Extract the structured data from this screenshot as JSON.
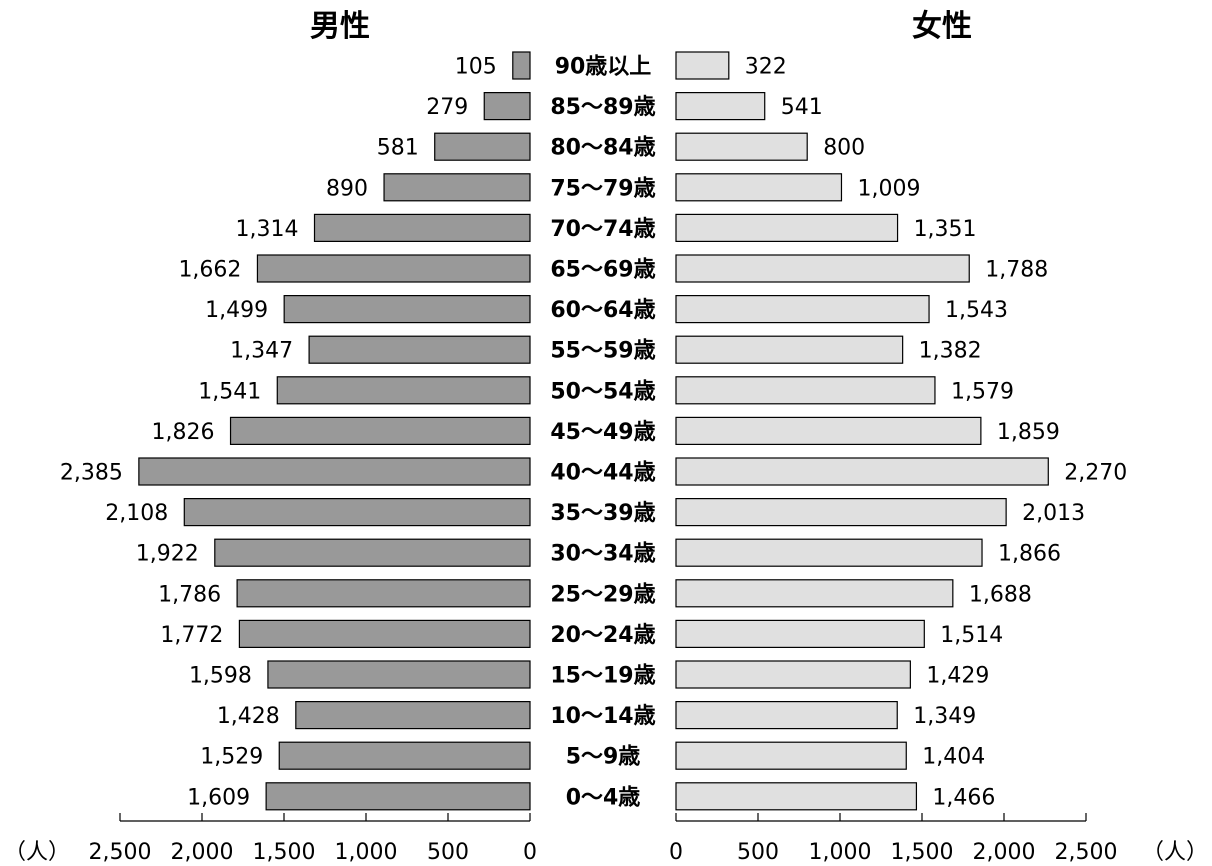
{
  "chart_data": {
    "type": "bar",
    "orientation": "horizontal-population-pyramid",
    "categories": [
      "90歳以上",
      "85〜89歳",
      "80〜84歳",
      "75〜79歳",
      "70〜74歳",
      "65〜69歳",
      "60〜64歳",
      "55〜59歳",
      "50〜54歳",
      "45〜49歳",
      "40〜44歳",
      "35〜39歳",
      "30〜34歳",
      "25〜29歳",
      "20〜24歳",
      "15〜19歳",
      "10〜14歳",
      "5〜9歳",
      "0〜4歳"
    ],
    "series": [
      {
        "name": "男性",
        "color": "#999999",
        "values": [
          105,
          279,
          581,
          890,
          1314,
          1662,
          1499,
          1347,
          1541,
          1826,
          2385,
          2108,
          1922,
          1786,
          1772,
          1598,
          1428,
          1529,
          1609
        ],
        "labels": [
          "105",
          "279",
          "581",
          "890",
          "1,314",
          "1,662",
          "1,499",
          "1,347",
          "1,541",
          "1,826",
          "2,385",
          "2,108",
          "1,922",
          "1,786",
          "1,772",
          "1,598",
          "1,428",
          "1,529",
          "1,609"
        ]
      },
      {
        "name": "女性",
        "color": "#e0e0e0",
        "values": [
          322,
          541,
          800,
          1009,
          1351,
          1788,
          1543,
          1382,
          1579,
          1859,
          2270,
          2013,
          1866,
          1688,
          1514,
          1429,
          1349,
          1404,
          1466
        ],
        "labels": [
          "322",
          "541",
          "800",
          "1,009",
          "1,351",
          "1,788",
          "1,543",
          "1,382",
          "1,579",
          "1,859",
          "2,270",
          "2,013",
          "1,866",
          "1,688",
          "1,514",
          "1,429",
          "1,349",
          "1,404",
          "1,466"
        ]
      }
    ],
    "xlim": [
      0,
      2500
    ],
    "ticks": [
      0,
      500,
      1000,
      1500,
      2000,
      2500
    ],
    "tick_labels": [
      "0",
      "500",
      "1,000",
      "1,500",
      "2,000",
      "2,500"
    ],
    "unit_label": "（人）",
    "grid": false
  }
}
